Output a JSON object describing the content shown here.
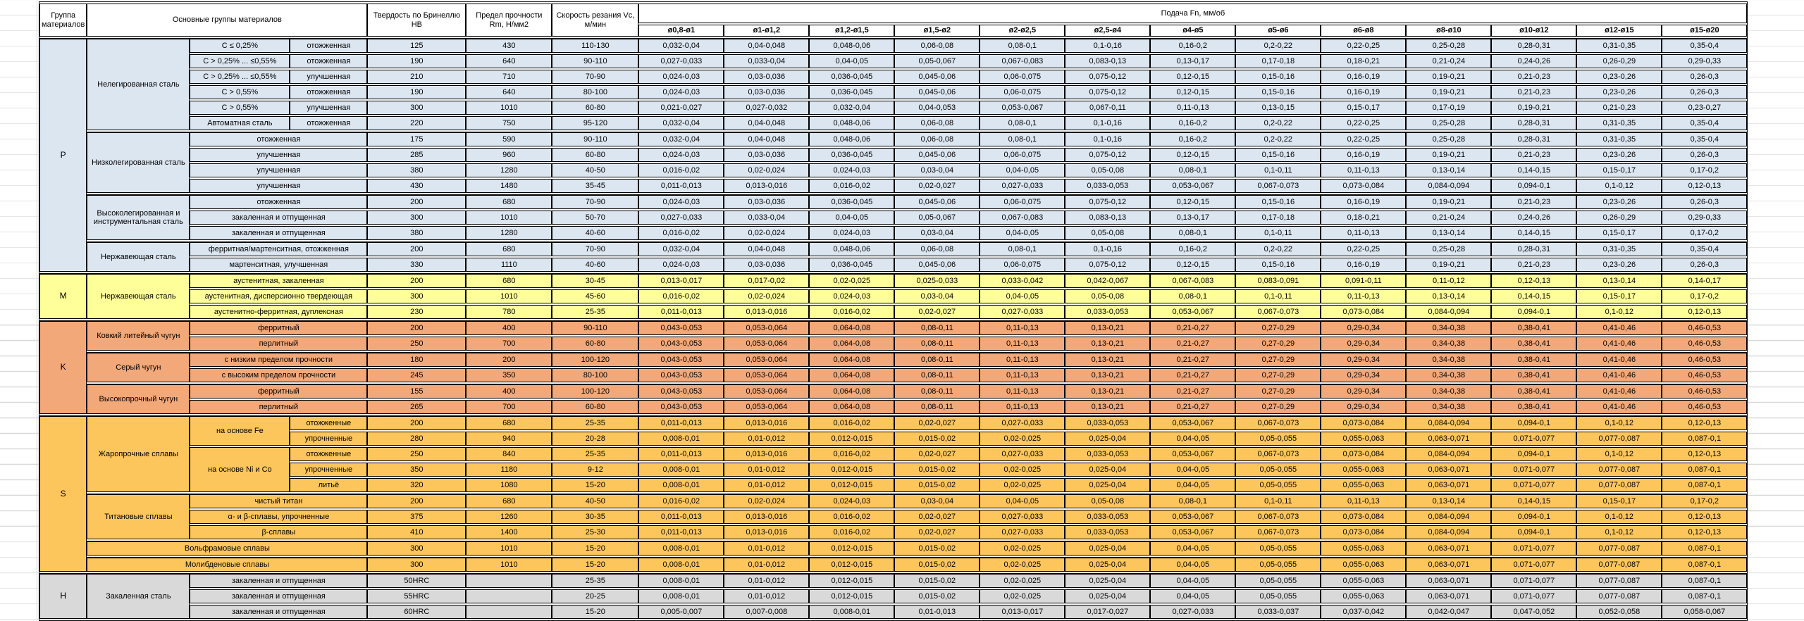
{
  "table": {
    "headers": {
      "group": "Группа материалов",
      "main_groups": "Основные группы материалов",
      "hardness": "Твердость по Бринеллю HB",
      "strength": "Предел прочности Rm, Н/мм2",
      "speed": "Скорость резания Vc, м/мин",
      "feed": "Подача Fn, мм/об",
      "feed_cols": [
        "ø0,8-ø1",
        "ø1-ø1,2",
        "ø1,2-ø1,5",
        "ø1,5-ø2",
        "ø2-ø2,5",
        "ø2,5-ø4",
        "ø4-ø5",
        "ø5-ø6",
        "ø6-ø8",
        "ø8-ø10",
        "ø10-ø12",
        "ø12-ø15",
        "ø15-ø20"
      ]
    },
    "feed_patterns": {
      "fA": [
        "0,032-0,04",
        "0,04-0,048",
        "0,048-0,06",
        "0,06-0,08",
        "0,08-0,1",
        "0,1-0,16",
        "0,16-0,2",
        "0,2-0,22",
        "0,22-0,25",
        "0,25-0,28",
        "0,28-0,31",
        "0,31-0,35",
        "0,35-0,4"
      ],
      "fB": [
        "0,027-0,033",
        "0,033-0,04",
        "0,04-0,05",
        "0,05-0,067",
        "0,067-0,083",
        "0,083-0,13",
        "0,13-0,17",
        "0,17-0,18",
        "0,18-0,21",
        "0,21-0,24",
        "0,24-0,26",
        "0,26-0,29",
        "0,29-0,33"
      ],
      "fC": [
        "0,024-0,03",
        "0,03-0,036",
        "0,036-0,045",
        "0,045-0,06",
        "0,06-0,075",
        "0,075-0,12",
        "0,12-0,15",
        "0,15-0,16",
        "0,16-0,19",
        "0,19-0,21",
        "0,21-0,23",
        "0,23-0,26",
        "0,26-0,3"
      ],
      "fD": [
        "0,021-0,027",
        "0,027-0,032",
        "0,032-0,04",
        "0,04-0,053",
        "0,053-0,067",
        "0,067-0,11",
        "0,11-0,13",
        "0,13-0,15",
        "0,15-0,17",
        "0,17-0,19",
        "0,19-0,21",
        "0,21-0,23",
        "0,23-0,27"
      ],
      "fE": [
        "0,016-0,02",
        "0,02-0,024",
        "0,024-0,03",
        "0,03-0,04",
        "0,04-0,05",
        "0,05-0,08",
        "0,08-0,1",
        "0,1-0,11",
        "0,11-0,13",
        "0,13-0,14",
        "0,14-0,15",
        "0,15-0,17",
        "0,17-0,2"
      ],
      "fF": [
        "0,011-0,013",
        "0,013-0,016",
        "0,016-0,02",
        "0,02-0,027",
        "0,027-0,033",
        "0,033-0,053",
        "0,053-0,067",
        "0,067-0,073",
        "0,073-0,084",
        "0,084-0,094",
        "0,094-0,1",
        "0,1-0,12",
        "0,12-0,13"
      ],
      "fM": [
        "0,013-0,017",
        "0,017-0,02",
        "0,02-0,025",
        "0,025-0,033",
        "0,033-0,042",
        "0,042-0,067",
        "0,067-0,083",
        "0,083-0,091",
        "0,091-0,11",
        "0,11-0,12",
        "0,12-0,13",
        "0,13-0,14",
        "0,14-0,17"
      ],
      "fK": [
        "0,043-0,053",
        "0,053-0,064",
        "0,064-0,08",
        "0,08-0,11",
        "0,11-0,13",
        "0,13-0,21",
        "0,21-0,27",
        "0,27-0,29",
        "0,29-0,34",
        "0,34-0,38",
        "0,38-0,41",
        "0,41-0,46",
        "0,46-0,53"
      ],
      "fS": [
        "0,008-0,01",
        "0,01-0,012",
        "0,012-0,015",
        "0,015-0,02",
        "0,02-0,025",
        "0,025-0,04",
        "0,04-0,05",
        "0,05-0,055",
        "0,055-0,063",
        "0,063-0,071",
        "0,071-0,077",
        "0,077-0,087",
        "0,087-0,1"
      ],
      "fH": [
        "0,005-0,007",
        "0,007-0,008",
        "0,008-0,01",
        "0,01-0,013",
        "0,013-0,017",
        "0,017-0,027",
        "0,027-0,033",
        "0,033-0,037",
        "0,037-0,042",
        "0,042-0,047",
        "0,047-0,052",
        "0,052-0,058",
        "0,058-0,067"
      ]
    },
    "groups": [
      {
        "letter": "P",
        "color": "#DCE6F1",
        "families": [
          {
            "name": "Нелегированная сталь",
            "rows": [
              {
                "spec": "C ≤ 0,25%",
                "state": "отожженная",
                "hb": "125",
                "rm": "430",
                "vc": "110-130",
                "feeds": "fA"
              },
              {
                "spec": "C > 0,25% ... ≤0,55%",
                "state": "отожженная",
                "hb": "190",
                "rm": "640",
                "vc": "90-110",
                "feeds": "fB"
              },
              {
                "spec": "C > 0,25% ... ≤0,55%",
                "state": "улучшенная",
                "hb": "210",
                "rm": "710",
                "vc": "70-90",
                "feeds": "fC"
              },
              {
                "spec": "C > 0,55%",
                "state": "отожженная",
                "hb": "190",
                "rm": "640",
                "vc": "80-100",
                "feeds": "fC"
              },
              {
                "spec": "C > 0,55%",
                "state": "улучшенная",
                "hb": "300",
                "rm": "1010",
                "vc": "60-80",
                "feeds": "fD"
              },
              {
                "spec": "Автоматная сталь",
                "state": "отожженная",
                "hb": "220",
                "rm": "750",
                "vc": "95-120",
                "feeds": "fA"
              }
            ]
          },
          {
            "name": "Низколегированная сталь",
            "rows": [
              {
                "desc": "отожженная",
                "hb": "175",
                "rm": "590",
                "vc": "90-110",
                "feeds": "fA"
              },
              {
                "desc": "улучшенная",
                "hb": "285",
                "rm": "960",
                "vc": "60-80",
                "feeds": "fC"
              },
              {
                "desc": "улучшенная",
                "hb": "380",
                "rm": "1280",
                "vc": "40-50",
                "feeds": "fE"
              },
              {
                "desc": "улучшенная",
                "hb": "430",
                "rm": "1480",
                "vc": "35-45",
                "feeds": "fF"
              }
            ]
          },
          {
            "name": "Высоколегированная и инструментальная сталь",
            "rows": [
              {
                "desc": "отожженная",
                "hb": "200",
                "rm": "680",
                "vc": "70-90",
                "feeds": "fC"
              },
              {
                "desc": "закаленная и отпущенная",
                "hb": "300",
                "rm": "1010",
                "vc": "50-70",
                "feeds": "fB"
              },
              {
                "desc": "закаленная и отпущенная",
                "hb": "380",
                "rm": "1280",
                "vc": "40-60",
                "feeds": "fE"
              }
            ]
          },
          {
            "name": "Нержавеющая сталь",
            "rows": [
              {
                "desc": "ферритная/мартенситная, отожженная",
                "hb": "200",
                "rm": "680",
                "vc": "70-90",
                "feeds": "fA"
              },
              {
                "desc": "мартенситная, улучшенная",
                "hb": "330",
                "rm": "1110",
                "vc": "40-60",
                "feeds": "fC"
              }
            ]
          }
        ]
      },
      {
        "letter": "M",
        "color": "#FFFF99",
        "families": [
          {
            "name": "Нержавеющая сталь",
            "rows": [
              {
                "desc": "аустенитная, закаленная",
                "hb": "200",
                "rm": "680",
                "vc": "30-45",
                "feeds": "fM"
              },
              {
                "desc": "аустенитная, дисперсионно твердеющая",
                "hb": "300",
                "rm": "1010",
                "vc": "45-60",
                "feeds": "fE"
              },
              {
                "desc": "аустенитно-ферритная, дуплексная",
                "hb": "230",
                "rm": "780",
                "vc": "25-35",
                "feeds": "fF"
              }
            ]
          }
        ]
      },
      {
        "letter": "K",
        "color": "#F2A878",
        "families": [
          {
            "name": "Ковкий литейный чугун",
            "rows": [
              {
                "desc": "ферритный",
                "hb": "200",
                "rm": "400",
                "vc": "90-110",
                "feeds": "fK"
              },
              {
                "desc": "перлитный",
                "hb": "250",
                "rm": "700",
                "vc": "60-80",
                "feeds": "fK"
              }
            ]
          },
          {
            "name": "Серый чугун",
            "rows": [
              {
                "desc": "с низким пределом прочности",
                "hb": "180",
                "rm": "200",
                "vc": "100-120",
                "feeds": "fK"
              },
              {
                "desc": "с высоким пределом прочности",
                "hb": "245",
                "rm": "350",
                "vc": "80-100",
                "feeds": "fK"
              }
            ]
          },
          {
            "name": "Высокопрочный чугун",
            "rows": [
              {
                "desc": "ферритный",
                "hb": "155",
                "rm": "400",
                "vc": "100-120",
                "feeds": "fK"
              },
              {
                "desc": "перлитный",
                "hb": "265",
                "rm": "700",
                "vc": "60-80",
                "feeds": "fK"
              }
            ]
          }
        ]
      },
      {
        "letter": "S",
        "color": "#FCC65C",
        "families": [
          {
            "name": "Жаропрочные сплавы",
            "rows": [
              {
                "base": "на основе Fe",
                "baseSpan": 2,
                "state": "отожженные",
                "hb": "200",
                "rm": "680",
                "vc": "25-35",
                "feeds": "fF"
              },
              {
                "state": "упрочненные",
                "hb": "280",
                "rm": "940",
                "vc": "20-28",
                "feeds": "fS"
              },
              {
                "base": "на основе Ni и Co",
                "baseSpan": 3,
                "state": "отожженные",
                "hb": "250",
                "rm": "840",
                "vc": "25-35",
                "feeds": "fF"
              },
              {
                "state": "упрочненные",
                "hb": "350",
                "rm": "1180",
                "vc": "9-12",
                "feeds": "fS"
              },
              {
                "state": "литьё",
                "hb": "320",
                "rm": "1080",
                "vc": "15-20",
                "feeds": "fS"
              }
            ]
          },
          {
            "name": "Титановые сплавы",
            "rows": [
              {
                "desc": "чистый титан",
                "hb": "200",
                "rm": "680",
                "vc": "40-50",
                "feeds": "fE"
              },
              {
                "desc": "α- и β-сплавы, упрочненные",
                "hb": "375",
                "rm": "1260",
                "vc": "30-35",
                "feeds": "fF"
              },
              {
                "desc": "β-сплавы",
                "hb": "410",
                "rm": "1400",
                "vc": "25-30",
                "feeds": "fF"
              }
            ]
          },
          {
            "name": "",
            "rows": [
              {
                "full": "Вольфрамовые сплавы",
                "hb": "300",
                "rm": "1010",
                "vc": "15-20",
                "feeds": "fS"
              }
            ]
          },
          {
            "name": "",
            "rows": [
              {
                "full": "Молибденовые сплавы",
                "hb": "300",
                "rm": "1010",
                "vc": "15-20",
                "feeds": "fS"
              }
            ]
          }
        ]
      },
      {
        "letter": "H",
        "color": "#D9D9D9",
        "families": [
          {
            "name": "Закаленная сталь",
            "rows": [
              {
                "desc": "закаленная и отпущенная",
                "hb": "50HRC",
                "rm": "",
                "vc": "25-35",
                "feeds": "fS"
              },
              {
                "desc": "закаленная и отпущенная",
                "hb": "55HRC",
                "rm": "",
                "vc": "20-25",
                "feeds": "fS"
              },
              {
                "desc": "закаленная и отпущенная",
                "hb": "60HRC",
                "rm": "",
                "vc": "15-20",
                "feeds": "fH"
              }
            ]
          }
        ]
      }
    ]
  }
}
